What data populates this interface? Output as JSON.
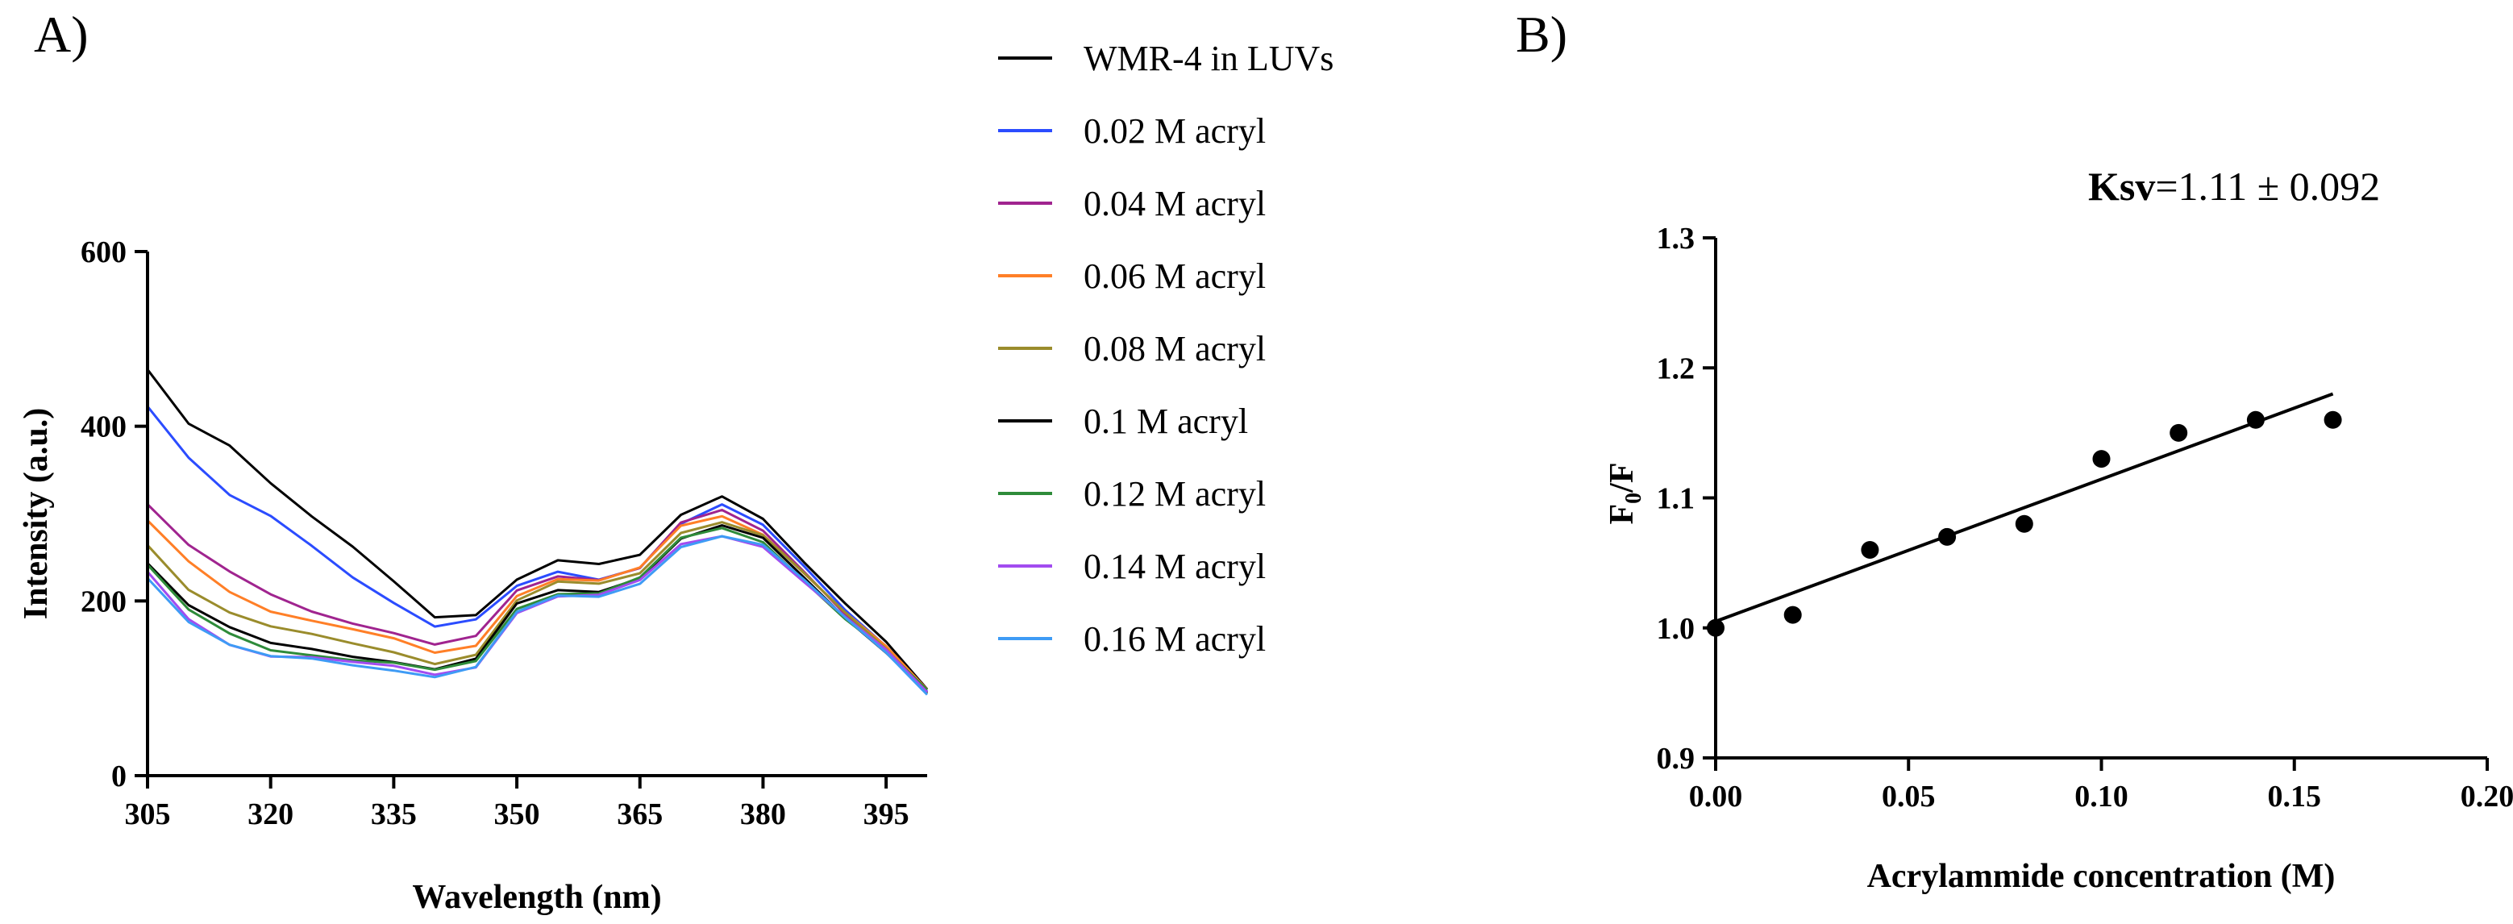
{
  "chart_data": [
    {
      "panel_label": "A)",
      "type": "line",
      "xlabel": "Wavelength (nm)",
      "ylabel": "Intensity (a.u.)",
      "xlim": [
        305,
        400
      ],
      "ylim": [
        0,
        600
      ],
      "xticks": [
        305,
        320,
        335,
        350,
        365,
        380,
        395
      ],
      "yticks": [
        0,
        200,
        400,
        600
      ],
      "grid": false,
      "legend_position": "right",
      "series": [
        {
          "name": "WMR-4 in LUVs",
          "color": "#000000",
          "x": [
            305,
            310,
            315,
            320,
            325,
            330,
            335,
            340,
            345,
            350,
            355,
            360,
            365,
            370,
            375,
            380,
            385,
            390,
            395,
            400
          ],
          "y": [
            465,
            405,
            380,
            335,
            295,
            260,
            222,
            183,
            186,
            225,
            245,
            240,
            252,
            300,
            322,
            295,
            243,
            195,
            152,
            100
          ]
        },
        {
          "name": "0.02 M acryl",
          "color": "#2b4cff",
          "x": [
            305,
            310,
            315,
            320,
            325,
            330,
            335,
            340,
            345,
            350,
            355,
            360,
            365,
            370,
            375,
            380,
            385,
            390,
            395,
            400
          ],
          "y": [
            425,
            365,
            320,
            295,
            262,
            228,
            200,
            172,
            178,
            215,
            232,
            225,
            240,
            290,
            310,
            285,
            238,
            190,
            150,
            98
          ]
        },
        {
          "name": "0.04 M acryl",
          "color": "#a0248f",
          "x": [
            305,
            310,
            315,
            320,
            325,
            330,
            335,
            340,
            345,
            350,
            355,
            360,
            365,
            370,
            375,
            380,
            385,
            390,
            395,
            400
          ],
          "y": [
            310,
            262,
            232,
            208,
            190,
            176,
            163,
            148,
            158,
            212,
            230,
            226,
            238,
            288,
            302,
            280,
            235,
            187,
            147,
            97
          ]
        },
        {
          "name": "0.06 M acryl",
          "color": "#ff7f27",
          "x": [
            305,
            310,
            315,
            320,
            325,
            330,
            335,
            340,
            345,
            350,
            355,
            360,
            365,
            370,
            375,
            380,
            385,
            390,
            395,
            400
          ],
          "y": [
            290,
            245,
            212,
            190,
            178,
            166,
            155,
            140,
            150,
            208,
            226,
            222,
            236,
            285,
            298,
            278,
            233,
            186,
            146,
            97
          ]
        },
        {
          "name": "0.08 M acryl",
          "color": "#9a8c2c",
          "x": [
            305,
            310,
            315,
            320,
            325,
            330,
            335,
            340,
            345,
            350,
            355,
            360,
            365,
            370,
            375,
            380,
            385,
            390,
            395,
            400
          ],
          "y": [
            265,
            215,
            188,
            170,
            160,
            150,
            142,
            130,
            140,
            200,
            220,
            218,
            232,
            280,
            292,
            275,
            230,
            185,
            145,
            96
          ]
        },
        {
          "name": "0.1 M acryl",
          "color": "#000000",
          "x": [
            305,
            310,
            315,
            320,
            325,
            330,
            335,
            340,
            345,
            350,
            355,
            360,
            365,
            370,
            375,
            380,
            385,
            390,
            395,
            400
          ],
          "y": [
            245,
            195,
            168,
            150,
            145,
            138,
            132,
            122,
            132,
            195,
            212,
            212,
            228,
            272,
            285,
            270,
            226,
            182,
            143,
            96
          ]
        },
        {
          "name": "0.12 M acryl",
          "color": "#2e8b3a",
          "x": [
            305,
            310,
            315,
            320,
            325,
            330,
            335,
            340,
            345,
            350,
            355,
            360,
            365,
            370,
            375,
            380,
            385,
            390,
            395,
            400
          ],
          "y": [
            240,
            188,
            162,
            145,
            140,
            133,
            128,
            119,
            130,
            192,
            210,
            210,
            226,
            270,
            282,
            268,
            225,
            181,
            143,
            96
          ]
        },
        {
          "name": "0.14 M acryl",
          "color": "#a24cf0",
          "x": [
            305,
            310,
            315,
            320,
            325,
            330,
            335,
            340,
            345,
            350,
            355,
            360,
            365,
            370,
            375,
            380,
            385,
            390,
            395,
            400
          ],
          "y": [
            232,
            180,
            152,
            138,
            135,
            128,
            124,
            116,
            126,
            188,
            205,
            205,
            222,
            265,
            276,
            264,
            222,
            180,
            142,
            95
          ]
        },
        {
          "name": "0.16 M acryl",
          "color": "#3e9bf5",
          "x": [
            305,
            310,
            315,
            320,
            325,
            330,
            335,
            340,
            345,
            350,
            355,
            360,
            365,
            370,
            375,
            380,
            385,
            390,
            395,
            400
          ],
          "y": [
            228,
            178,
            150,
            135,
            132,
            126,
            122,
            115,
            125,
            186,
            204,
            204,
            221,
            264,
            275,
            263,
            222,
            180,
            142,
            95
          ]
        }
      ]
    },
    {
      "panel_label": "B)",
      "type": "scatter",
      "xlabel": "Acrylammide concentration (M)",
      "ylabel": "F0/F",
      "ylabel_main": "F",
      "ylabel_sub": "0",
      "ylabel_tail": "/F",
      "xlim": [
        0,
        0.2
      ],
      "ylim": [
        0.9,
        1.3
      ],
      "xticks": [
        0.0,
        0.05,
        0.1,
        0.15,
        0.2
      ],
      "xtick_labels": [
        "0.00",
        "0.05",
        "0.10",
        "0.15",
        "0.20"
      ],
      "yticks": [
        0.9,
        1.0,
        1.1,
        1.2,
        1.3
      ],
      "ytick_labels": [
        "0.9",
        "1.0",
        "1.1",
        "1.2",
        "1.3"
      ],
      "grid": false,
      "points": {
        "x": [
          0.0,
          0.02,
          0.04,
          0.06,
          0.08,
          0.1,
          0.12,
          0.14,
          0.16
        ],
        "y": [
          1.0,
          1.01,
          1.06,
          1.07,
          1.08,
          1.13,
          1.15,
          1.16,
          1.16
        ]
      },
      "fit_line": {
        "x": [
          0.0,
          0.16
        ],
        "y": [
          1.005,
          1.18
        ]
      },
      "annotation": {
        "label": "Ksv",
        "value": "=1.11 ± 0.092"
      }
    }
  ]
}
